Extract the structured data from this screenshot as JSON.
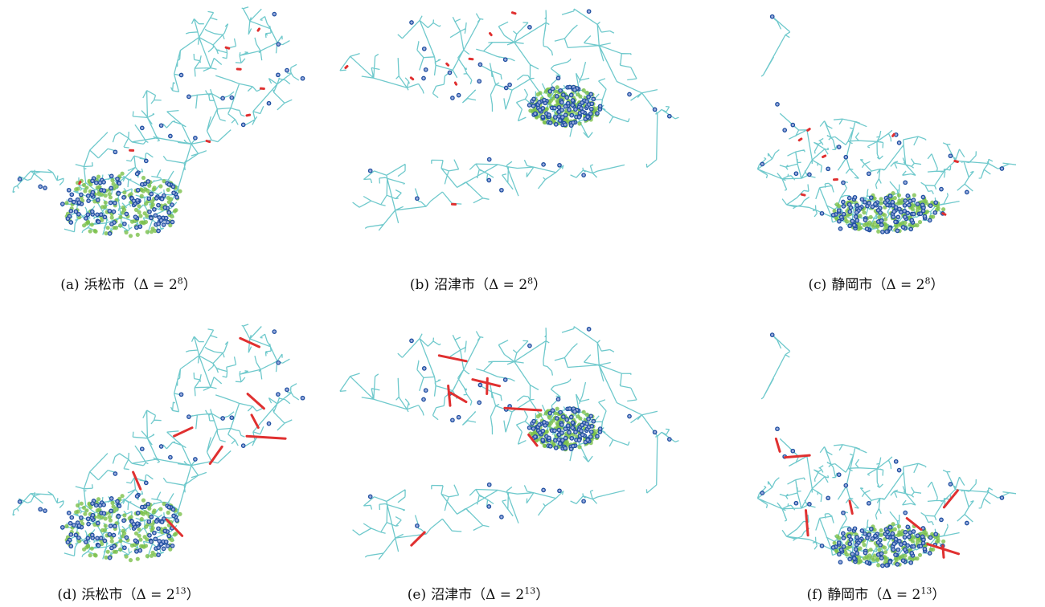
{
  "panels": [
    {
      "label": "(a)",
      "city": "浜松市",
      "formula": "（Δ = 2",
      "exponent": "8",
      "close": "）"
    },
    {
      "label": "(b)",
      "city": "沼津市",
      "formula": "（Δ = 2",
      "exponent": "8",
      "close": "）"
    },
    {
      "label": "(c)",
      "city": "静岡市",
      "formula": "（Δ = 2",
      "exponent": "8",
      "close": "）"
    },
    {
      "label": "(d)",
      "city": "浜松市",
      "formula": "（Δ = 2",
      "exponent": "13",
      "close": "）"
    },
    {
      "label": "(e)",
      "city": "沼津市",
      "formula": "（Δ = 2",
      "exponent": "13",
      "close": "）"
    },
    {
      "label": "(f)",
      "city": "静岡市",
      "formula": "（Δ = 2",
      "exponent": "13",
      "close": "）"
    }
  ]
}
